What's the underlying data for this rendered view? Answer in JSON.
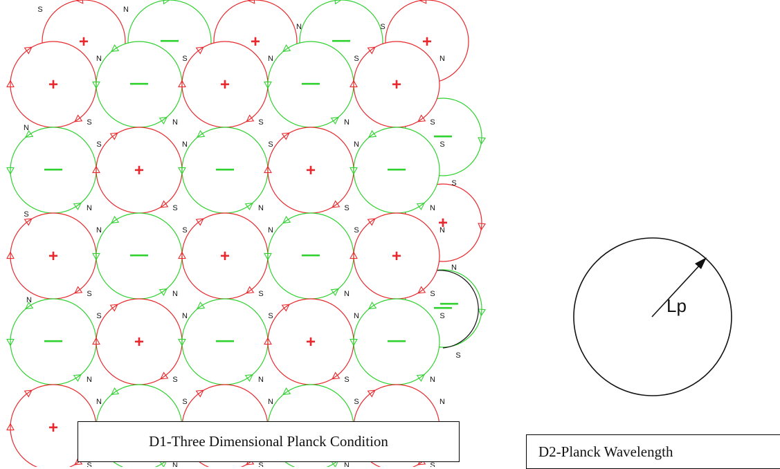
{
  "colors": {
    "positive": "#e8282c",
    "negative": "#2fd12f",
    "neutral": "#111111"
  },
  "symbols": {
    "positive": "+",
    "negative": "—",
    "north": "N",
    "south": "S"
  },
  "d1": {
    "caption": "D1-Three Dimensional Planck Condition",
    "rows": [
      [
        "+",
        "—",
        "+",
        "—",
        "+"
      ],
      [
        "—",
        "+",
        "—",
        "+",
        "—"
      ],
      [
        "+",
        "—",
        "+",
        "—",
        "+"
      ],
      [
        "—",
        "+",
        "—",
        "+",
        "—"
      ],
      [
        "+",
        "—",
        "+",
        "—",
        "+"
      ]
    ],
    "back_layer": [
      "+",
      "—",
      "+",
      "—",
      "+"
    ],
    "side_layer": [
      "—",
      "+",
      "—"
    ]
  },
  "d2": {
    "caption": "D2-Planck Wavelength",
    "radius_label": "Lp"
  }
}
